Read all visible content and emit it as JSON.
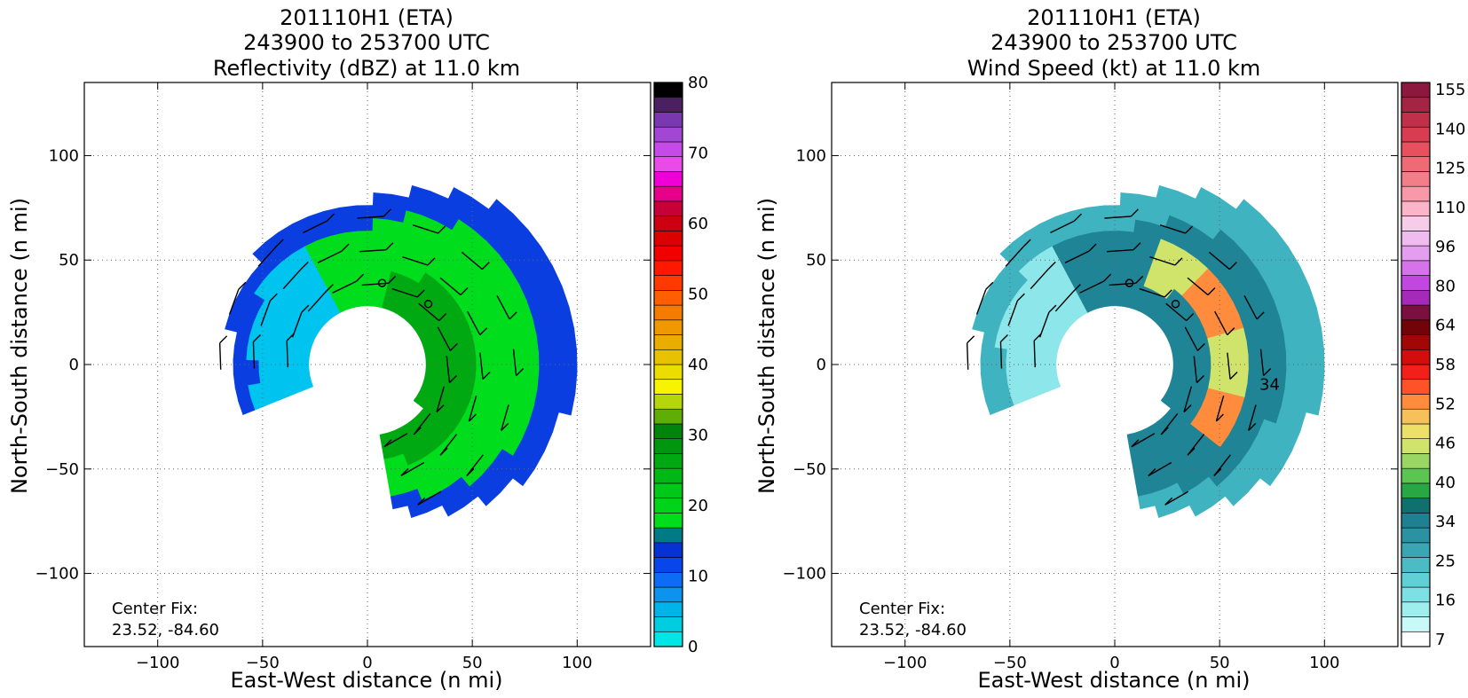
{
  "chart_data": [
    {
      "type": "heatmap",
      "title_lines": [
        "201110H1 (ETA)",
        "243900 to 253700 UTC",
        "Reflectivity (dBZ) at 11.0 km"
      ],
      "xlabel": "East-West distance (n mi)",
      "ylabel": "North-South distance (n mi)",
      "xlim": [
        -135,
        135
      ],
      "ylim": [
        -135,
        135
      ],
      "xticks": [
        -100,
        -50,
        0,
        50,
        100
      ],
      "yticks": [
        -100,
        -50,
        0,
        50,
        100
      ],
      "grid": true,
      "center_fix_label": "Center Fix:",
      "center_fix_value": "23.52, -84.60",
      "colorbar": {
        "min": 0,
        "max": 80,
        "ticks": [
          0,
          10,
          20,
          30,
          40,
          50,
          60,
          70,
          80
        ],
        "colors": [
          "#00e5e5",
          "#00cde0",
          "#00b4ea",
          "#0a93ef",
          "#0d6cf5",
          "#0a45ec",
          "#0632d4",
          "#007a86",
          "#00dd1d",
          "#00d41a",
          "#00c818",
          "#00b815",
          "#00a812",
          "#00960f",
          "#00850c",
          "#5fae05",
          "#b4d60a",
          "#f8f300",
          "#ecdc00",
          "#e8c200",
          "#e9ad00",
          "#f09800",
          "#f57c00",
          "#ff5f00",
          "#ff3a00",
          "#ff1800",
          "#f20000",
          "#dd0000",
          "#cc0010",
          "#c70036",
          "#e6008a",
          "#f000d8",
          "#e84be8",
          "#c64ae8",
          "#a246d6",
          "#7a38b0",
          "#4a2060",
          "#000000"
        ]
      },
      "field": {
        "ranges": [
          [
            0,
            12
          ],
          [
            12,
            20
          ],
          [
            20,
            28
          ],
          [
            28,
            34
          ]
        ],
        "colors": [
          "#00c4f0",
          "#0a3ee0",
          "#00dd1d",
          "#00a812"
        ]
      }
    },
    {
      "type": "heatmap",
      "title_lines": [
        "201110H1 (ETA)",
        "243900 to 253700 UTC",
        "Wind Speed (kt) at 11.0 km"
      ],
      "xlabel": "East-West distance (n mi)",
      "ylabel": "North-South distance (n mi)",
      "xlim": [
        -135,
        135
      ],
      "ylim": [
        -135,
        135
      ],
      "xticks": [
        -100,
        -50,
        0,
        50,
        100
      ],
      "yticks": [
        -100,
        -50,
        0,
        50,
        100
      ],
      "grid": true,
      "center_fix_label": "Center Fix:",
      "center_fix_value": "23.52, -84.60",
      "contour_label": "34",
      "colorbar": {
        "tick_labels": [
          "7",
          "16",
          "25",
          "34",
          "40",
          "46",
          "52",
          "58",
          "64",
          "80",
          "96",
          "110",
          "125",
          "140",
          "155"
        ],
        "colors": [
          "#ffffff",
          "#c8f8f8",
          "#9eeeee",
          "#7de0e4",
          "#5fd0d6",
          "#4bbcc6",
          "#3aa6b4",
          "#2a92a2",
          "#1e8090",
          "#10706e",
          "#28a844",
          "#5cc450",
          "#9ad664",
          "#d0e46c",
          "#ece068",
          "#f6c05a",
          "#ff8c3c",
          "#ff5228",
          "#f22018",
          "#d40c0c",
          "#a20606",
          "#700408",
          "#7a1040",
          "#a62ab8",
          "#c446e0",
          "#d672ea",
          "#e49ef0",
          "#f0bcef",
          "#f6cce8",
          "#fbb4c8",
          "#f898a8",
          "#f27e8a",
          "#ee6a74",
          "#e85060",
          "#d83c50",
          "#c03048",
          "#a42444",
          "#8c1840"
        ]
      },
      "field": {
        "ranges": [
          [
            5,
            18
          ],
          [
            18,
            26
          ],
          [
            26,
            38
          ],
          [
            38,
            50
          ],
          [
            50,
            64
          ]
        ],
        "colors": [
          "#8ce6ea",
          "#3fb3c0",
          "#1f8496",
          "#d0e46c",
          "#ff8c3c"
        ]
      }
    }
  ]
}
